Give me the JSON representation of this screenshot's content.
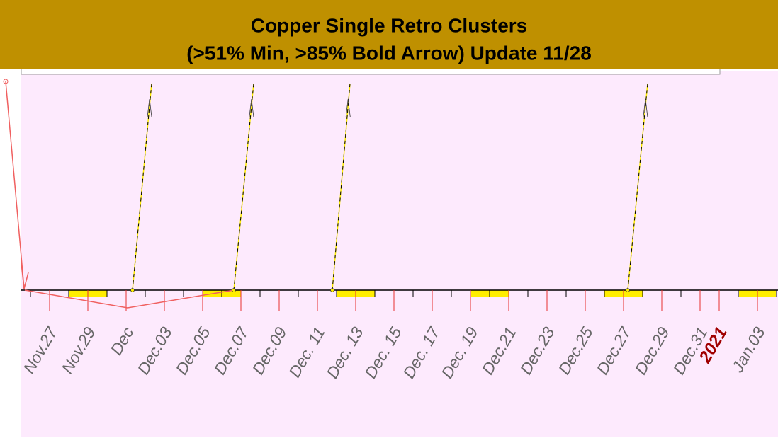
{
  "chart_data": {
    "type": "timeline",
    "title": [
      "Copper Single Retro Clusters",
      "(>51% Min, >85% Bold Arrow) Update 11/28"
    ],
    "categories": [
      "Nov.27",
      "Nov.29",
      "Dec",
      "Dec.03",
      "Dec.05",
      "Dec.07",
      "Dec.09",
      "Dec. 11",
      "Dec. 13",
      "Dec. 15",
      "Dec. 17",
      "Dec. 19",
      "Dec.21",
      "Dec.23",
      "Dec.25",
      "Dec.27",
      "Dec.29",
      "Dec.31",
      "2021",
      "Jan.03"
    ]
  }
}
